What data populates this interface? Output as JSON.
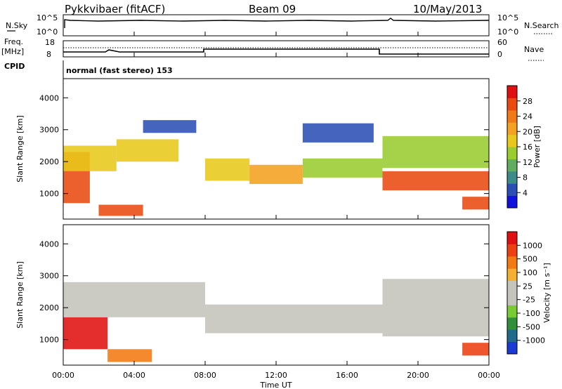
{
  "header": {
    "radar": "Pykkvibaer (fitACF)",
    "beam": "Beam 09",
    "date": "10/May/2013"
  },
  "top_panels": {
    "nsky_label": "N.Sky",
    "nsky_ticks": [
      "10^5",
      "10^0"
    ],
    "nsearch_label": "N.Search",
    "nsearch_ticks": [
      "10^5",
      "10^0"
    ],
    "freq_label": "Freq.",
    "freq_unit": "[MHz]",
    "freq_ticks": [
      "18",
      "8"
    ],
    "nave_label": "Nave",
    "nave_ticks": [
      "60",
      "0"
    ],
    "cpid_label": "CPID",
    "cpid_text": "normal (fast stereo) 153"
  },
  "chart_data": [
    {
      "type": "heatmap",
      "name": "power",
      "ylabel": "Slant Range [km]",
      "yticks": [
        1000,
        2000,
        3000,
        4000
      ],
      "ylim": [
        200,
        4600
      ],
      "xlim": [
        0,
        24
      ],
      "colorbar_label": "Power [dB]",
      "colorbar_ticks": [
        "4",
        "8",
        "12",
        "16",
        "20",
        "24",
        "28"
      ],
      "colorbar_colors": [
        "#1010e0",
        "#2a4fb4",
        "#3c8a8a",
        "#5fae5f",
        "#9acc30",
        "#e8c81a",
        "#f4a020",
        "#f07a18",
        "#e84a10",
        "#e01010"
      ],
      "grid": false,
      "bands": [
        {
          "t_start": 0.0,
          "t_end": 1.5,
          "r_low": 700,
          "r_high": 2300,
          "level": 8
        },
        {
          "t_start": 0.0,
          "t_end": 3.0,
          "r_low": 1700,
          "r_high": 2500,
          "level": 5
        },
        {
          "t_start": 3.0,
          "t_end": 6.5,
          "r_low": 2000,
          "r_high": 2700,
          "level": 5
        },
        {
          "t_start": 2.0,
          "t_end": 4.5,
          "r_low": 300,
          "r_high": 650,
          "level": 8
        },
        {
          "t_start": 8.0,
          "t_end": 10.5,
          "r_low": 1400,
          "r_high": 2100,
          "level": 5
        },
        {
          "t_start": 10.5,
          "t_end": 13.5,
          "r_low": 1300,
          "r_high": 1900,
          "level": 6
        },
        {
          "t_start": 13.5,
          "t_end": 18.0,
          "r_low": 1500,
          "r_high": 2100,
          "level": 4
        },
        {
          "t_start": 18.0,
          "t_end": 24.0,
          "r_low": 1100,
          "r_high": 1700,
          "level": 8
        },
        {
          "t_start": 18.0,
          "t_end": 24.0,
          "r_low": 1800,
          "r_high": 2800,
          "level": 4
        },
        {
          "t_start": 4.5,
          "t_end": 7.5,
          "r_low": 2900,
          "r_high": 3300,
          "level": 1
        },
        {
          "t_start": 13.5,
          "t_end": 17.5,
          "r_low": 2600,
          "r_high": 3200,
          "level": 1
        },
        {
          "t_start": 22.5,
          "t_end": 24.0,
          "r_low": 500,
          "r_high": 900,
          "level": 8
        }
      ]
    },
    {
      "type": "heatmap",
      "name": "velocity",
      "ylabel": "Slant Range [km]",
      "yticks": [
        1000,
        2000,
        3000,
        4000
      ],
      "ylim": [
        200,
        4600
      ],
      "xlim": [
        0,
        24
      ],
      "xticks": [
        "00:00",
        "04:00",
        "08:00",
        "12:00",
        "16:00",
        "20:00",
        "00:00"
      ],
      "xlabel": "Time UT",
      "colorbar_label": "Velocity [m s⁻¹]",
      "colorbar_ticks": [
        "1000",
        "500",
        "100",
        "25",
        "-25",
        "-100",
        "-500",
        "-1000"
      ],
      "colorbar_colors": [
        "#1a3ad4",
        "#206a8c",
        "#2f8f3a",
        "#77cc33",
        "#c4c4bc",
        "#c4c4bc",
        "#f4b030",
        "#f27a10",
        "#ec4010",
        "#e01010"
      ],
      "grid": false,
      "bands": [
        {
          "t_start": 0.0,
          "t_end": 2.5,
          "r_low": 700,
          "r_high": 1700,
          "level": 9
        },
        {
          "t_start": 0.0,
          "t_end": 8.0,
          "r_low": 1700,
          "r_high": 2800,
          "level": 5
        },
        {
          "t_start": 8.0,
          "t_end": 18.0,
          "r_low": 1200,
          "r_high": 2100,
          "level": 5
        },
        {
          "t_start": 18.0,
          "t_end": 24.0,
          "r_low": 1100,
          "r_high": 2900,
          "level": 5
        },
        {
          "t_start": 2.5,
          "t_end": 5.0,
          "r_low": 300,
          "r_high": 700,
          "level": 7
        },
        {
          "t_start": 22.5,
          "t_end": 24.0,
          "r_low": 500,
          "r_high": 900,
          "level": 8
        }
      ]
    }
  ],
  "time_ticks": [
    "00:00",
    "04:00",
    "08:00",
    "12:00",
    "16:00",
    "20:00",
    "00:00"
  ]
}
